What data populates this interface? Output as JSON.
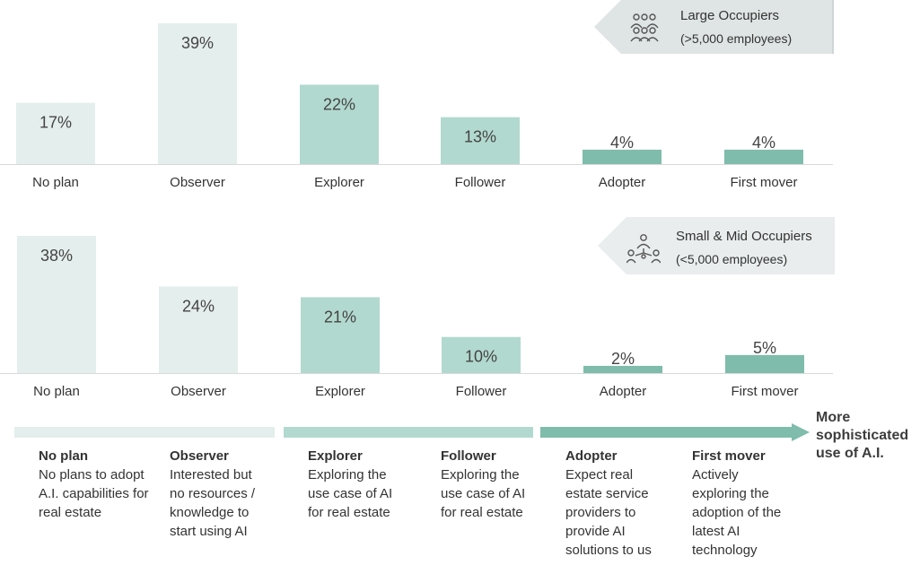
{
  "colors": {
    "light": "#e4eeec",
    "mid": "#b2d9cf",
    "dark": "#7fbcab",
    "banner": "#e9eded",
    "banner_dark": "#d8dcdc",
    "axis": "#d9d9d9",
    "text": "#333333"
  },
  "chart_data": [
    {
      "type": "bar",
      "categories": [
        "No plan",
        "Observer",
        "Explorer",
        "Follower",
        "Adopter",
        "First mover"
      ],
      "values": [
        17,
        39,
        22,
        13,
        4,
        4
      ],
      "value_labels": [
        "17%",
        "39%",
        "22%",
        "13%",
        "4%",
        "4%"
      ],
      "unit": "%",
      "ylim": [
        0,
        39
      ],
      "grid": false,
      "title": "Large Occupiers",
      "subtitle": "(>5,000 employees)",
      "bar_colors": [
        "#e4eeec",
        "#e4eeec",
        "#b2d9cf",
        "#b2d9cf",
        "#7fbcab",
        "#7fbcab"
      ]
    },
    {
      "type": "bar",
      "categories": [
        "No plan",
        "Observer",
        "Explorer",
        "Follower",
        "Adopter",
        "First mover"
      ],
      "values": [
        38,
        24,
        21,
        10,
        2,
        5
      ],
      "value_labels": [
        "38%",
        "24%",
        "21%",
        "10%",
        "2%",
        "5%"
      ],
      "unit": "%",
      "ylim": [
        0,
        38
      ],
      "grid": false,
      "title": "Small & Mid Occupiers",
      "subtitle": "(<5,000 employees)",
      "bar_colors": [
        "#e4eeec",
        "#e4eeec",
        "#b2d9cf",
        "#b2d9cf",
        "#7fbcab",
        "#7fbcab"
      ]
    }
  ],
  "legend": {
    "arrow_label": "More sophisticated use of A.I.",
    "stages": [
      {
        "name": "No plan",
        "desc": "No plans to adopt A.I. capabilities for real estate"
      },
      {
        "name": "Observer",
        "desc": "Interested but no resources / knowledge to start using AI"
      },
      {
        "name": "Explorer",
        "desc": "Exploring the use case of AI for real estate"
      },
      {
        "name": "Follower",
        "desc": "Exploring the use case of AI for real estate"
      },
      {
        "name": "Adopter",
        "desc": "Expect real estate service providers to provide AI solutions to us"
      },
      {
        "name": "First mover",
        "desc": "Actively exploring the adoption of the latest AI technology"
      }
    ]
  },
  "icons": {
    "large": "people-group-icon",
    "small": "people-network-icon"
  }
}
